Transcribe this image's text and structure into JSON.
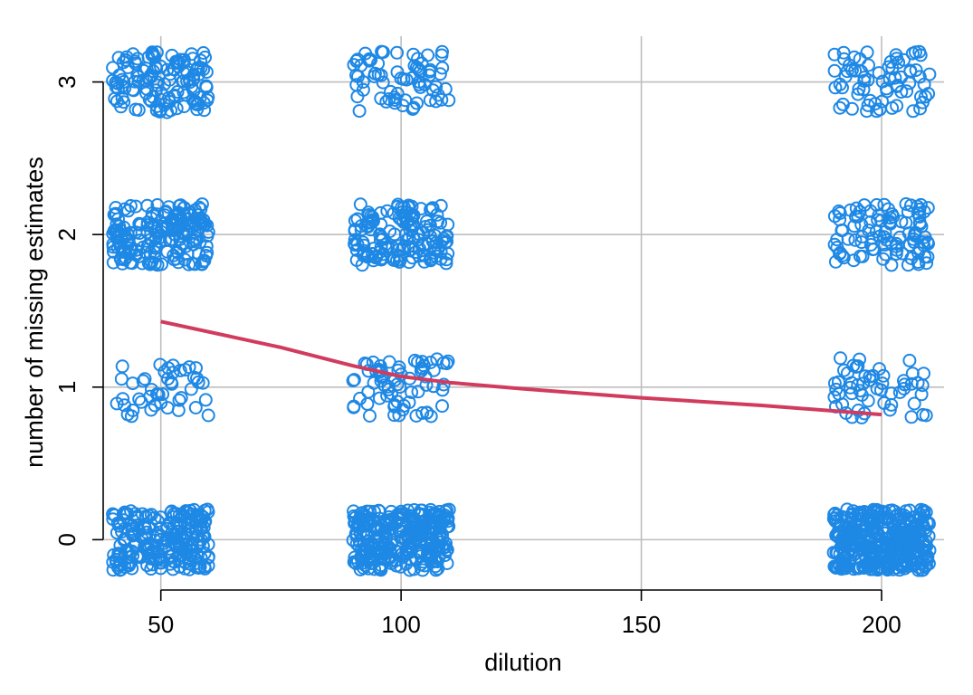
{
  "chart_data": {
    "type": "scatter",
    "title": "",
    "xlabel": "dilution",
    "ylabel": "number of missing estimates",
    "xlim": [
      38,
      213
    ],
    "ylim": [
      -0.33,
      3.3
    ],
    "xticks": [
      50,
      100,
      150,
      200
    ],
    "yticks": [
      0,
      1,
      2,
      3
    ],
    "x_tick_labels": [
      "50",
      "100",
      "150",
      "200"
    ],
    "y_tick_labels": [
      "0",
      "1",
      "2",
      "3"
    ],
    "grid": true,
    "legend": "none",
    "colors": {
      "points": "#1E88E5",
      "trend": "#D03B5E",
      "grid": "#BEBEBE",
      "axis": "#000000"
    },
    "jitter": {
      "x": 10,
      "y": 0.2
    },
    "points_summary": [
      {
        "dilution": 50,
        "missing": 0,
        "count": 230
      },
      {
        "dilution": 50,
        "missing": 1,
        "count": 45
      },
      {
        "dilution": 50,
        "missing": 2,
        "count": 190
      },
      {
        "dilution": 50,
        "missing": 3,
        "count": 130
      },
      {
        "dilution": 100,
        "missing": 0,
        "count": 300
      },
      {
        "dilution": 100,
        "missing": 1,
        "count": 70
      },
      {
        "dilution": 100,
        "missing": 2,
        "count": 150
      },
      {
        "dilution": 100,
        "missing": 3,
        "count": 70
      },
      {
        "dilution": 200,
        "missing": 0,
        "count": 380
      },
      {
        "dilution": 200,
        "missing": 1,
        "count": 55
      },
      {
        "dilution": 200,
        "missing": 2,
        "count": 100
      },
      {
        "dilution": 200,
        "missing": 3,
        "count": 70
      }
    ],
    "trend_line": {
      "x": [
        50,
        75,
        90,
        100,
        110,
        125,
        150,
        175,
        200
      ],
      "y": [
        1.43,
        1.26,
        1.14,
        1.07,
        1.03,
        0.99,
        0.93,
        0.88,
        0.82
      ]
    }
  }
}
